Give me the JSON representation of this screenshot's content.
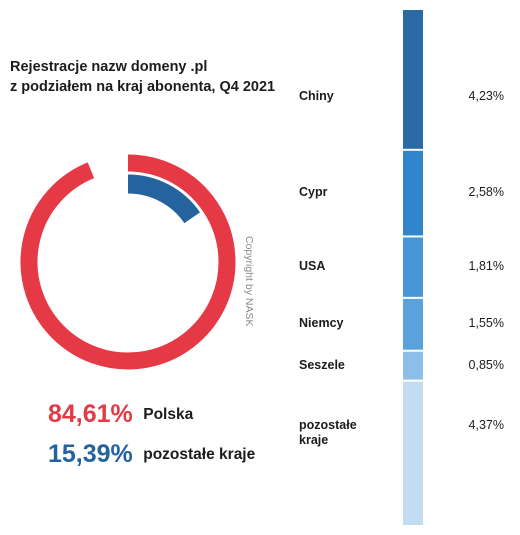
{
  "title_line1": "Rejestracje nazw domeny .pl",
  "title_line2": "z podziałem na kraj abonenta, Q4 2021",
  "copyright": "Copyright by NASK",
  "colors": {
    "polska": "#e63946",
    "other": "#24639e",
    "chiny": "#2a6aa5",
    "cypr": "#2f86cc",
    "usa": "#4796d6",
    "niemcy": "#5aa2dc",
    "seszele": "#8cbfe8",
    "pozostale": "#c2dcf3"
  },
  "chart_data": [
    {
      "type": "pie",
      "style": "donut",
      "slices": [
        {
          "name": "Polska",
          "value": 84.61,
          "label": "84,61%",
          "legend": "Polska"
        },
        {
          "name": "pozostałe kraje",
          "value": 15.39,
          "label": "15,39%",
          "legend": "pozostałe kraje"
        }
      ]
    },
    {
      "type": "bar",
      "orientation": "stacked-vertical",
      "categories": [
        "Chiny",
        "Cypr",
        "USA",
        "Niemcy",
        "Seszele",
        "pozostałe kraje"
      ],
      "values": [
        4.23,
        2.58,
        1.81,
        1.55,
        0.85,
        4.37
      ],
      "labels": [
        "4,23%",
        "2,58%",
        "1,81%",
        "1,55%",
        "0,85%",
        "4,37%"
      ]
    }
  ]
}
